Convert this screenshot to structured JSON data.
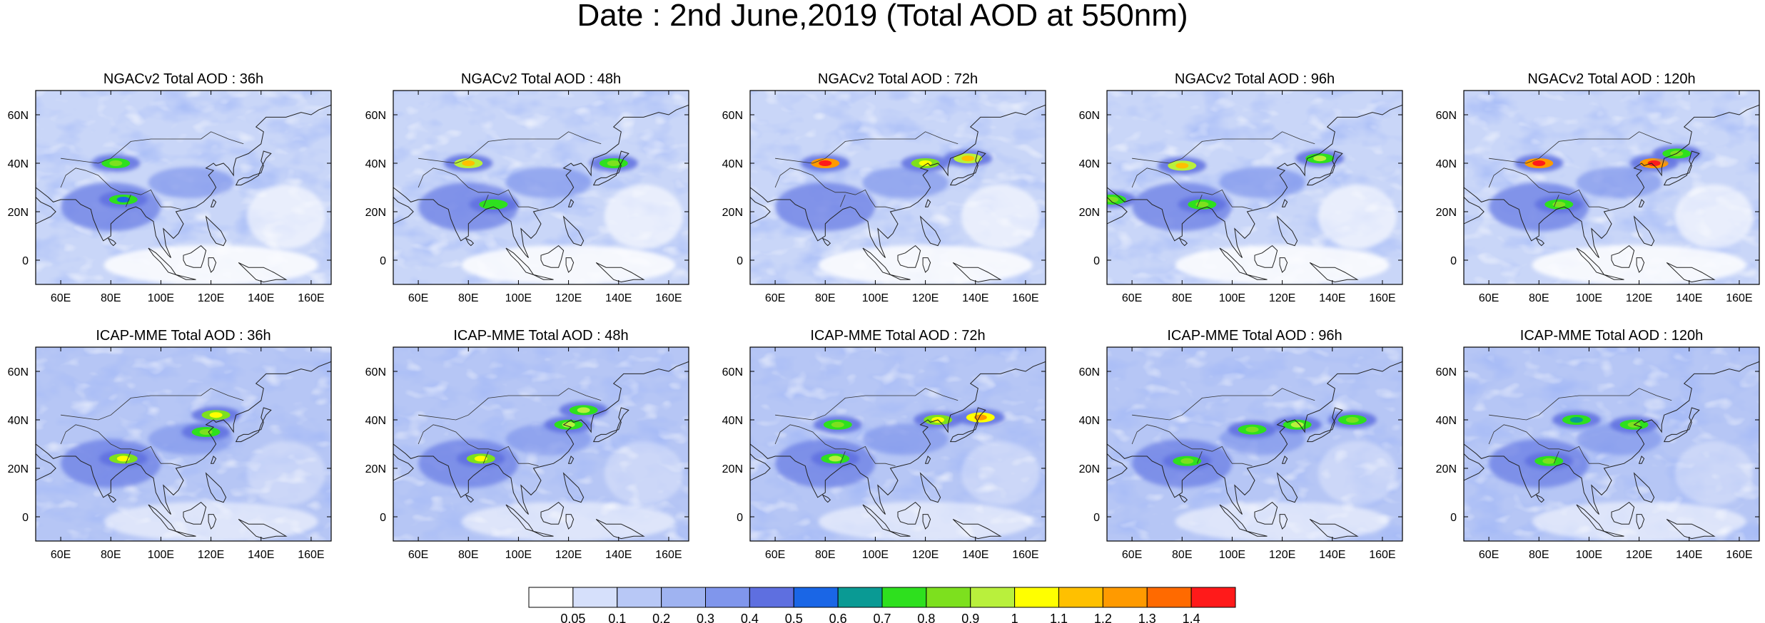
{
  "title": "Date : 2nd June,2019 (Total AOD at 550nm)",
  "rows": [
    {
      "model": "NGACv2",
      "panels": [
        {
          "label": "NGACv2 Total AOD : 36h",
          "hotspots": [
            {
              "lon": 82,
              "lat": 40,
              "aod": 0.8
            },
            {
              "lon": 85,
              "lat": 25,
              "aod": 0.5
            }
          ]
        },
        {
          "label": "NGACv2 Total AOD : 48h",
          "hotspots": [
            {
              "lon": 80,
              "lat": 40,
              "aod": 1.1
            },
            {
              "lon": 90,
              "lat": 23,
              "aod": 0.7
            },
            {
              "lon": 138,
              "lat": 40,
              "aod": 0.8
            }
          ]
        },
        {
          "label": "NGACv2 Total AOD : 72h",
          "hotspots": [
            {
              "lon": 80,
              "lat": 40,
              "aod": 1.4
            },
            {
              "lon": 120,
              "lat": 40,
              "aod": 1.0
            },
            {
              "lon": 137,
              "lat": 42,
              "aod": 1.1
            }
          ]
        },
        {
          "label": "NGACv2 Total AOD : 96h",
          "hotspots": [
            {
              "lon": 80,
              "lat": 39,
              "aod": 1.1
            },
            {
              "lon": 52,
              "lat": 25,
              "aod": 0.8
            },
            {
              "lon": 88,
              "lat": 23,
              "aod": 0.8
            },
            {
              "lon": 135,
              "lat": 42,
              "aod": 0.9
            }
          ]
        },
        {
          "label": "NGACv2 Total AOD : 120h",
          "hotspots": [
            {
              "lon": 80,
              "lat": 40,
              "aod": 1.4
            },
            {
              "lon": 126,
              "lat": 40,
              "aod": 1.4
            },
            {
              "lon": 88,
              "lat": 23,
              "aod": 0.8
            },
            {
              "lon": 135,
              "lat": 44,
              "aod": 0.8
            }
          ]
        }
      ]
    },
    {
      "model": "ICAP-MME",
      "panels": [
        {
          "label": "ICAP-MME Total AOD : 36h",
          "hotspots": [
            {
              "lon": 85,
              "lat": 24,
              "aod": 1.0
            },
            {
              "lon": 122,
              "lat": 42,
              "aod": 1.0
            },
            {
              "lon": 118,
              "lat": 35,
              "aod": 0.8
            }
          ]
        },
        {
          "label": "ICAP-MME Total AOD : 48h",
          "hotspots": [
            {
              "lon": 85,
              "lat": 24,
              "aod": 1.0
            },
            {
              "lon": 120,
              "lat": 38,
              "aod": 0.9
            },
            {
              "lon": 126,
              "lat": 44,
              "aod": 0.9
            }
          ]
        },
        {
          "label": "ICAP-MME Total AOD : 72h",
          "hotspots": [
            {
              "lon": 84,
              "lat": 24,
              "aod": 0.9
            },
            {
              "lon": 142,
              "lat": 41,
              "aod": 1.2
            },
            {
              "lon": 125,
              "lat": 40,
              "aod": 1.0
            },
            {
              "lon": 85,
              "lat": 38,
              "aod": 0.8
            }
          ]
        },
        {
          "label": "ICAP-MME Total AOD : 96h",
          "hotspots": [
            {
              "lon": 82,
              "lat": 23,
              "aod": 0.8
            },
            {
              "lon": 126,
              "lat": 38,
              "aod": 0.9
            },
            {
              "lon": 148,
              "lat": 40,
              "aod": 0.8
            },
            {
              "lon": 108,
              "lat": 36,
              "aod": 0.8
            }
          ]
        },
        {
          "label": "ICAP-MME Total AOD : 120h",
          "hotspots": [
            {
              "lon": 84,
              "lat": 23,
              "aod": 0.8
            },
            {
              "lon": 118,
              "lat": 38,
              "aod": 0.8
            },
            {
              "lon": 95,
              "lat": 40,
              "aod": 0.6
            }
          ]
        }
      ]
    }
  ],
  "axes": {
    "lon_range": [
      50,
      168
    ],
    "lat_range": [
      -10,
      70
    ],
    "lon_ticks": [
      60,
      80,
      100,
      120,
      140,
      160
    ],
    "lon_tick_labels": [
      "60E",
      "80E",
      "100E",
      "120E",
      "140E",
      "160E"
    ],
    "lat_ticks": [
      0,
      20,
      40,
      60
    ],
    "lat_tick_labels": [
      "0",
      "20N",
      "40N",
      "60N"
    ]
  },
  "colorbar": {
    "labels": [
      "0.05",
      "0.1",
      "0.2",
      "0.3",
      "0.4",
      "0.5",
      "0.6",
      "0.7",
      "0.8",
      "0.9",
      "1",
      "1.1",
      "1.2",
      "1.3",
      "1.4"
    ],
    "thresholds": [
      0.05,
      0.1,
      0.2,
      0.3,
      0.4,
      0.5,
      0.6,
      0.7,
      0.8,
      0.9,
      1.0,
      1.1,
      1.2,
      1.3,
      1.4
    ],
    "colors": [
      "#ffffff",
      "#d6e0fb",
      "#b8c8f6",
      "#9fb3f1",
      "#8096ec",
      "#5e6fe0",
      "#1a66e6",
      "#0a9a94",
      "#2ee01e",
      "#7de01e",
      "#b9f03c",
      "#ffff00",
      "#ffc000",
      "#ff9a00",
      "#ff6a00",
      "#ff1a1a"
    ]
  }
}
